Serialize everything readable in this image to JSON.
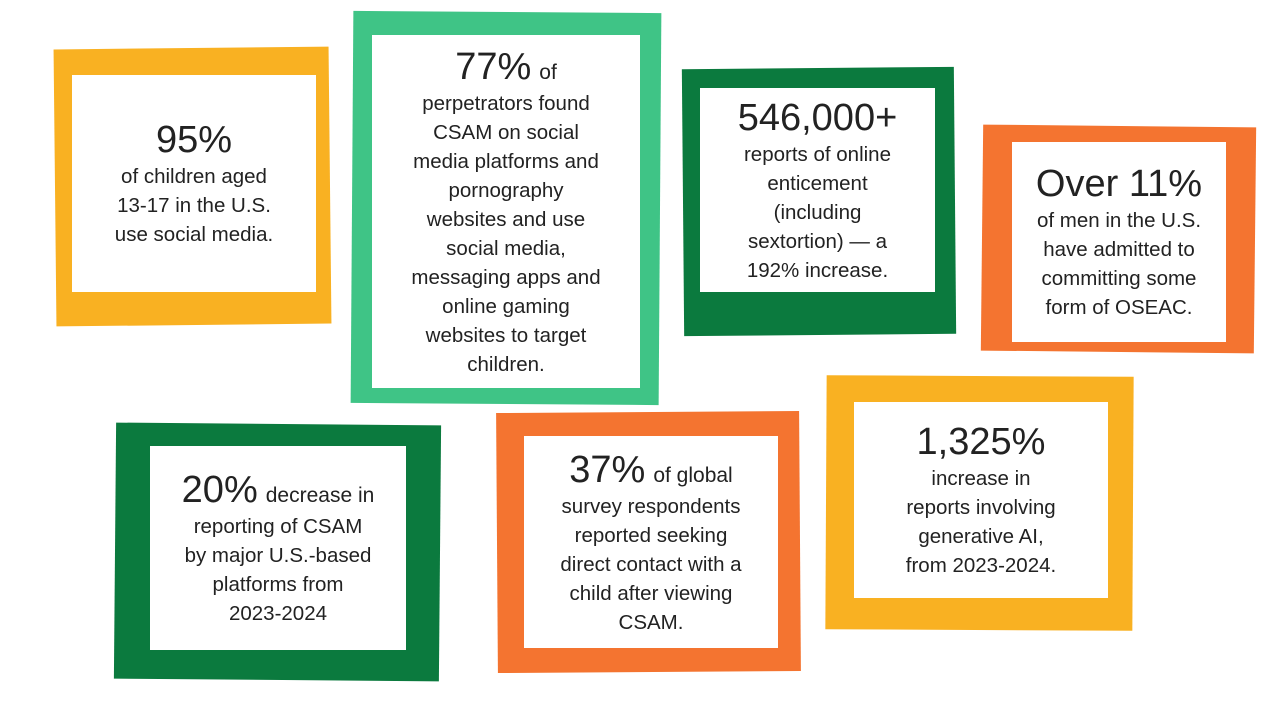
{
  "cards": [
    {
      "stat": "95%",
      "lines": [
        "of children aged",
        "13-17 in the U.S.",
        "use social media."
      ]
    },
    {
      "stat": "77%",
      "suffix": "of",
      "lines": [
        "perpetrators found",
        "CSAM on social",
        "media platforms and",
        "pornography",
        "websites and use",
        "social media,",
        "messaging apps and",
        "online gaming",
        "websites to target",
        "children."
      ]
    },
    {
      "stat": "546,000+",
      "lines": [
        "reports of online",
        "enticement",
        "(including",
        "sextortion) — a",
        "192% increase."
      ]
    },
    {
      "stat": "Over 11%",
      "lines": [
        "of men in the U.S.",
        "have admitted to",
        "committing some",
        "form of OSEAC."
      ]
    },
    {
      "stat": "20%",
      "suffix": "decrease in",
      "lines": [
        "reporting of CSAM",
        "by major U.S.-based",
        "platforms from",
        "2023-2024"
      ]
    },
    {
      "stat": "37%",
      "suffix": "of global",
      "lines": [
        "survey respondents",
        "reported seeking",
        "direct contact with a",
        "child after viewing",
        "CSAM."
      ]
    },
    {
      "stat": "1,325%",
      "lines": [
        "increase in",
        "reports involving",
        "generative AI,",
        "from 2023-2024."
      ]
    }
  ]
}
